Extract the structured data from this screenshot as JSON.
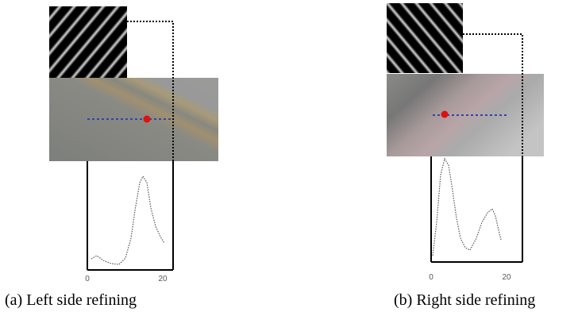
{
  "panels": [
    {
      "caption": "(a) Left side refining",
      "tick_start": "0",
      "tick_end": "20"
    },
    {
      "caption": "(b) Right side refining",
      "tick_start": "0",
      "tick_end": "20"
    }
  ]
}
